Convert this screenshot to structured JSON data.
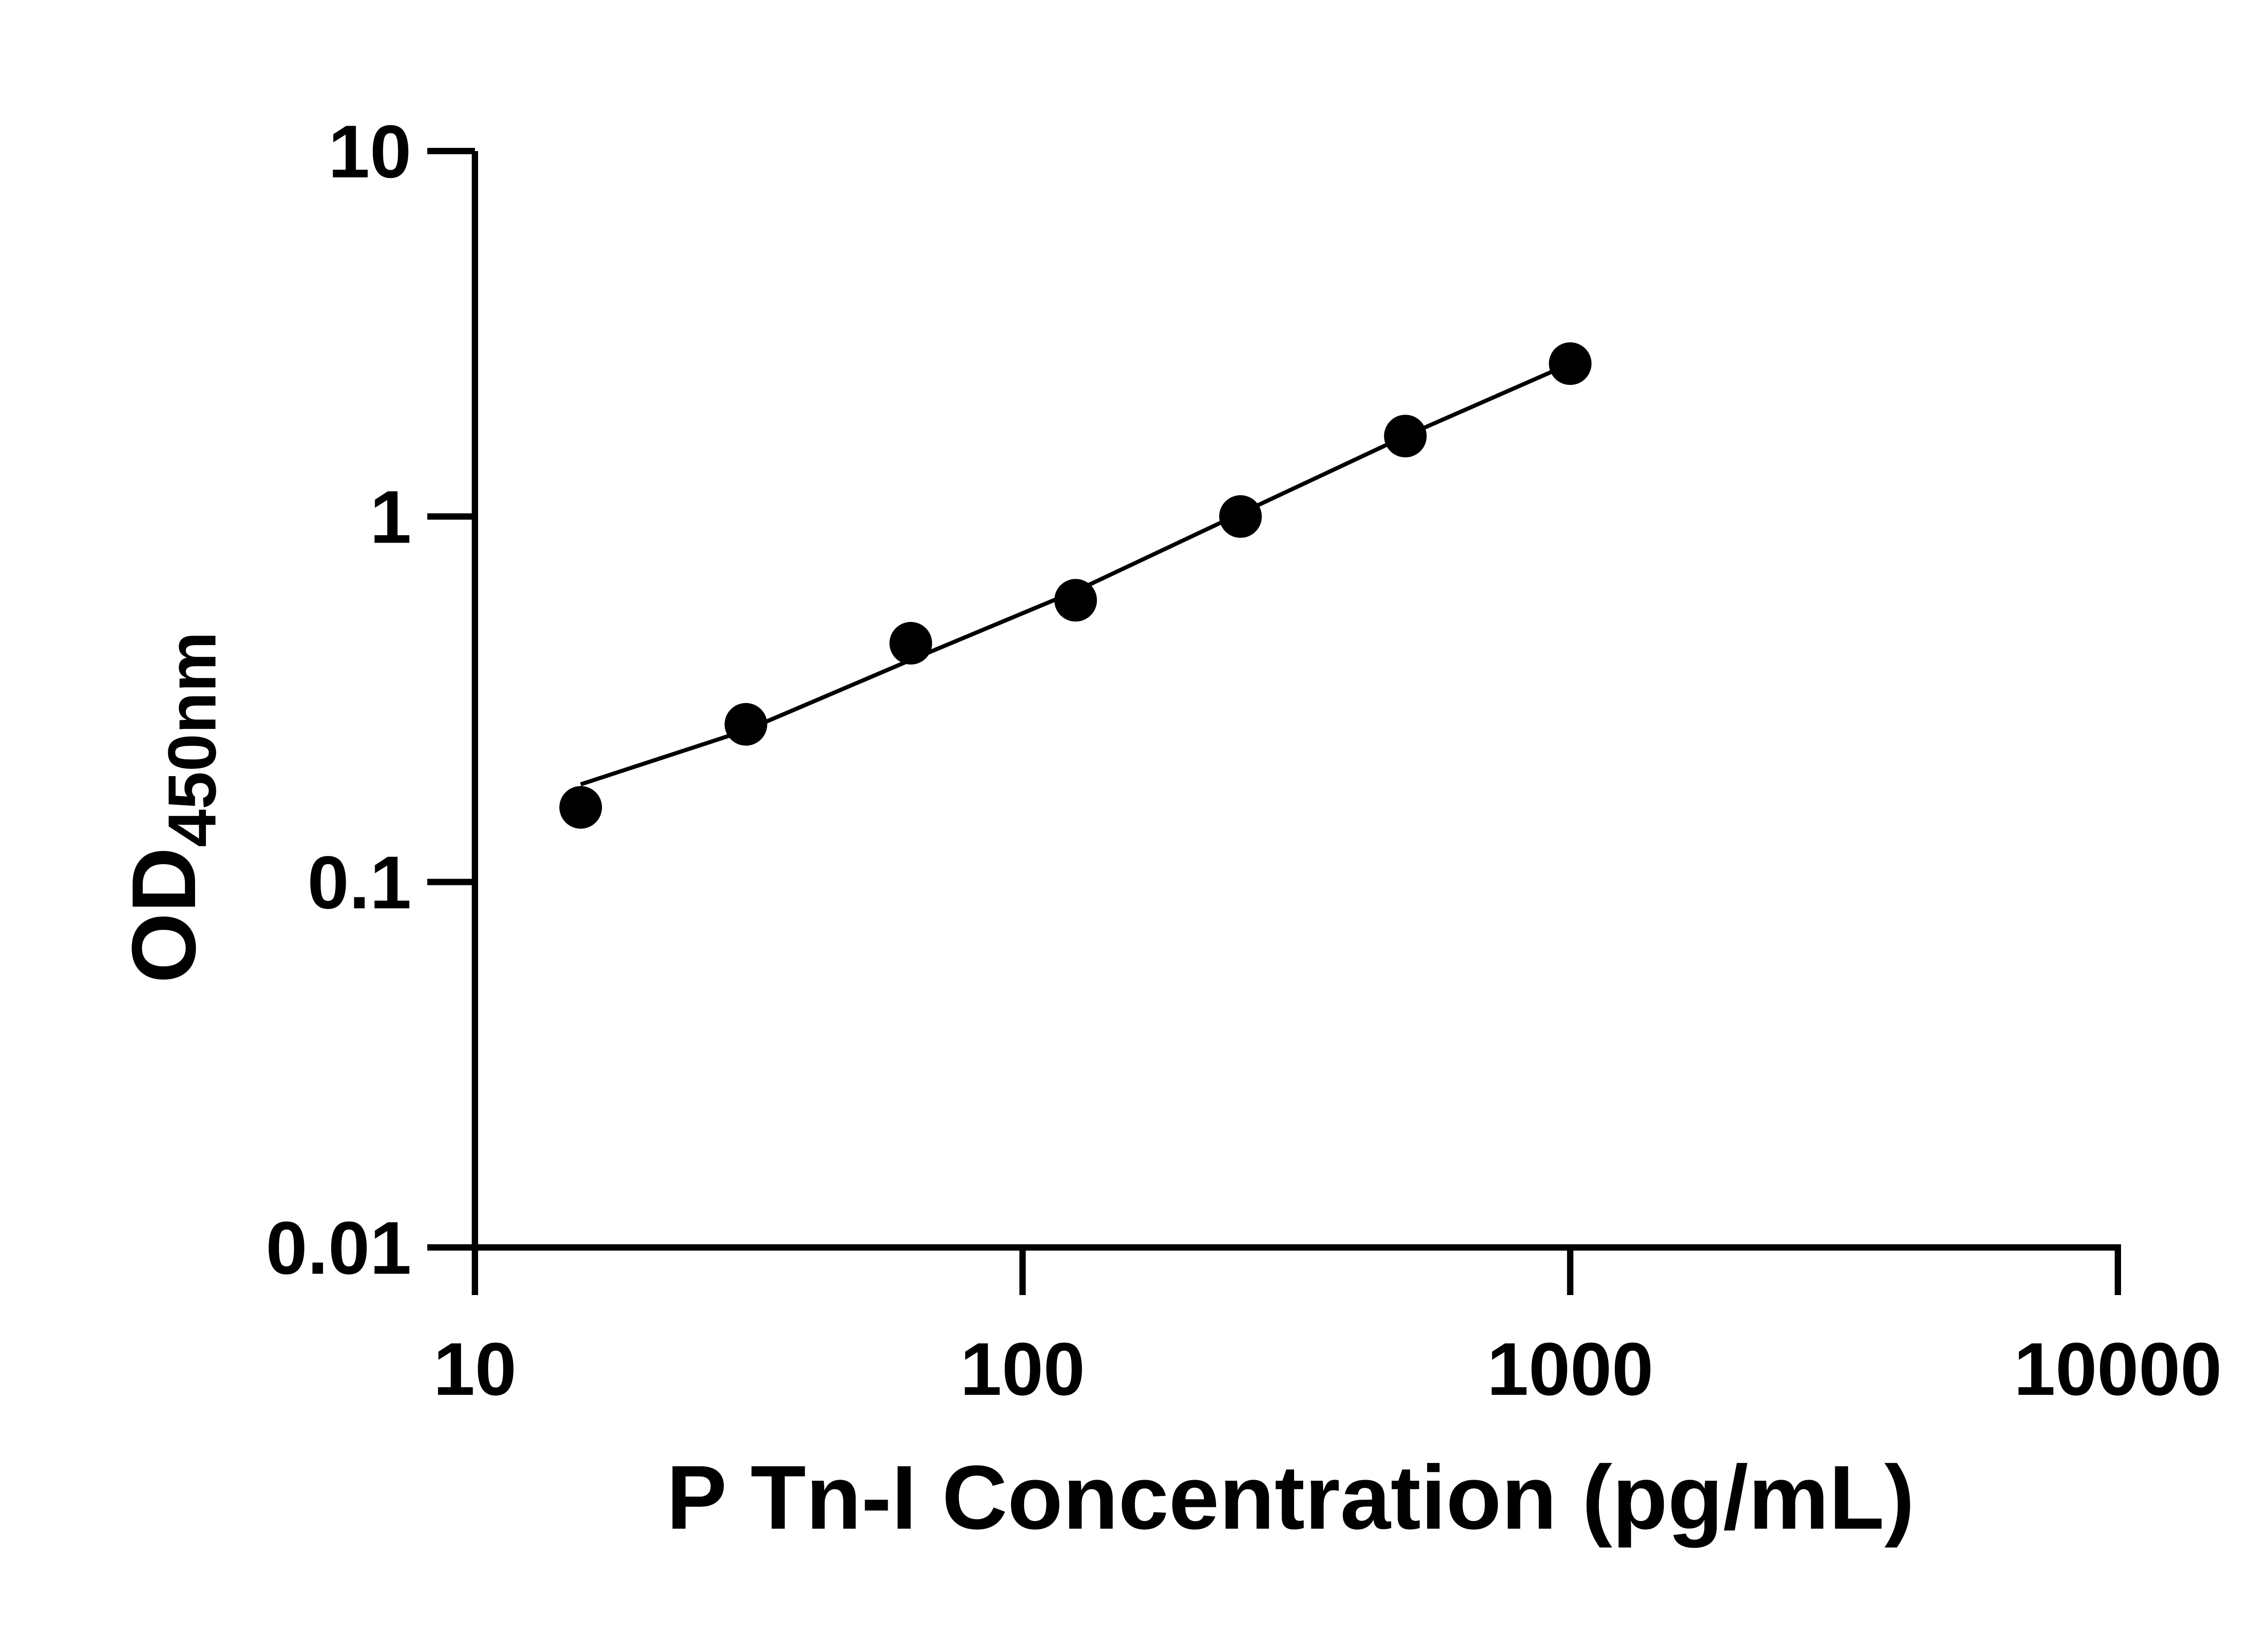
{
  "chart_data": {
    "type": "scatter",
    "title": "",
    "xlabel": "P Tn-I Concentration (pg/mL)",
    "ylabel": {
      "main": "OD",
      "subscript": "450nm"
    },
    "x_scale": "log",
    "y_scale": "log",
    "xlim": [
      10,
      10000
    ],
    "ylim": [
      0.01,
      10
    ],
    "x_ticks": [
      10,
      100,
      1000,
      10000
    ],
    "x_tick_labels": [
      "10",
      "100",
      "1000",
      "10000"
    ],
    "y_ticks": [
      0.01,
      0.1,
      1,
      10
    ],
    "y_tick_labels": [
      "0.01",
      "0.1",
      "1",
      "10"
    ],
    "grid": false,
    "legend": "none",
    "series": [
      {
        "points": [
          {
            "x": 15.6,
            "y": 0.16
          },
          {
            "x": 31.25,
            "y": 0.27
          },
          {
            "x": 62.5,
            "y": 0.45
          },
          {
            "x": 125,
            "y": 0.59
          },
          {
            "x": 250,
            "y": 1.0
          },
          {
            "x": 500,
            "y": 1.66
          },
          {
            "x": 1000,
            "y": 2.62
          }
        ],
        "fit_line": [
          {
            "x": 15.6,
            "y": 0.185
          },
          {
            "x": 31.25,
            "y": 0.26
          },
          {
            "x": 62.5,
            "y": 0.405
          },
          {
            "x": 125,
            "y": 0.625
          },
          {
            "x": 250,
            "y": 1.02
          },
          {
            "x": 500,
            "y": 1.66
          },
          {
            "x": 1000,
            "y": 2.62
          }
        ]
      }
    ],
    "colors": {
      "marker": "#000000",
      "line": "#000000",
      "axis": "#000000"
    }
  }
}
